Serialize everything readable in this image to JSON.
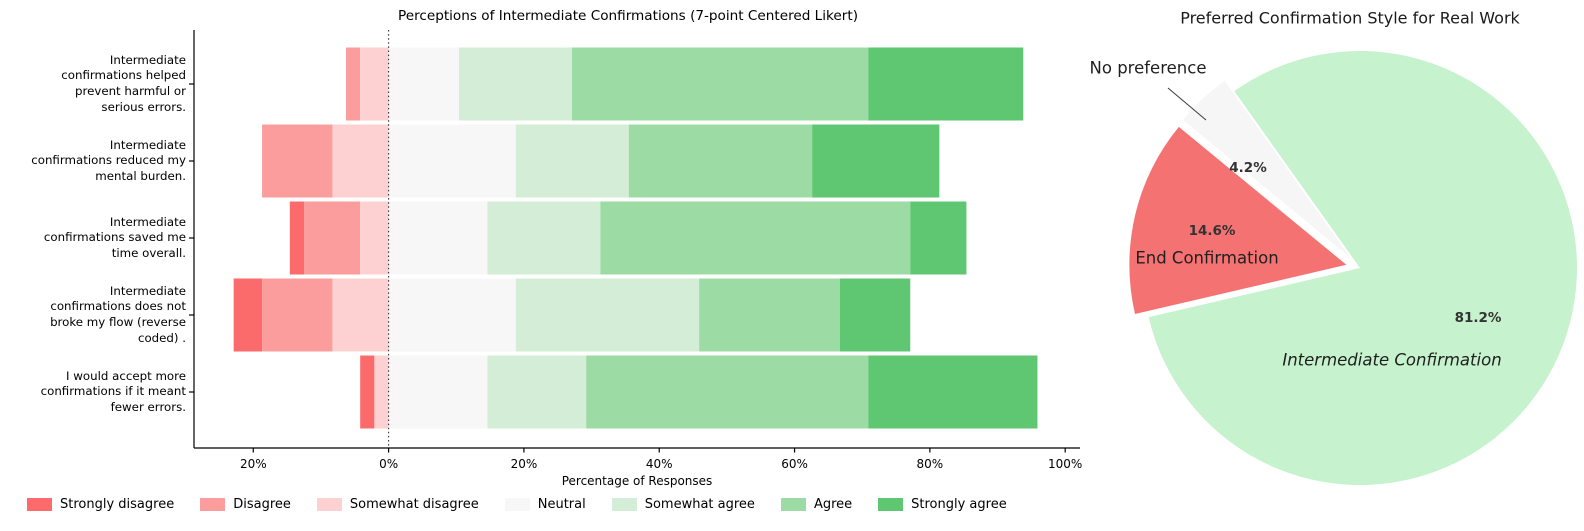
{
  "chart_data": [
    {
      "type": "bar",
      "variant": "diverging-stacked-likert",
      "title": "Perceptions of Intermediate Confirmations (7-point Centered Likert)",
      "xlabel": "Percentage of Responses",
      "x_tick_labels": [
        "20%",
        "0%",
        "20%",
        "40%",
        "60%",
        "80%",
        "100%"
      ],
      "x_tick_values": [
        -20,
        0,
        20,
        40,
        60,
        80,
        100
      ],
      "xlim": [
        -28.6,
        102.3
      ],
      "zero_line": 0,
      "grid": false,
      "legend_position": "bottom",
      "categories": [
        {
          "label": "Intermediate confirmations helped prevent harmful or serious errors.",
          "lines": [
            "Intermediate",
            "confirmations helped",
            "prevent harmful or",
            "serious errors."
          ]
        },
        {
          "label": "Intermediate confirmations reduced my mental burden.",
          "lines": [
            "Intermediate",
            "confirmations reduced my",
            "mental burden."
          ]
        },
        {
          "label": "Intermediate confirmations saved me time overall.",
          "lines": [
            "Intermediate",
            "confirmations saved me",
            "time overall."
          ]
        },
        {
          "label": "Intermediate confirmations does not broke my flow (reverse coded) .",
          "lines": [
            "Intermediate",
            "confirmations does not",
            "broke my flow (reverse",
            "coded) ."
          ]
        },
        {
          "label": "I would accept more confirmations if it meant fewer errors.",
          "lines": [
            "I would accept more",
            "confirmations if it meant",
            "fewer errors."
          ]
        }
      ],
      "series": [
        {
          "name": "Strongly disagree",
          "color": "#fb6b6b",
          "values": [
            0.0,
            0.0,
            2.1,
            4.2,
            2.1
          ]
        },
        {
          "name": "Disagree",
          "color": "#fb9d9d",
          "values": [
            2.1,
            10.4,
            8.3,
            10.4,
            0.0
          ]
        },
        {
          "name": "Somewhat disagree",
          "color": "#fdd1d1",
          "values": [
            4.2,
            8.3,
            4.2,
            8.3,
            2.1
          ]
        },
        {
          "name": "Neutral",
          "color": "#f7f7f7",
          "values": [
            10.4,
            18.8,
            14.6,
            18.8,
            14.6
          ]
        },
        {
          "name": "Somewhat agree",
          "color": "#d4edd6",
          "values": [
            16.7,
            16.7,
            16.7,
            27.1,
            14.6
          ]
        },
        {
          "name": "Agree",
          "color": "#9cdca4",
          "values": [
            43.8,
            27.1,
            45.8,
            20.8,
            41.7
          ]
        },
        {
          "name": "Strongly agree",
          "color": "#5fc671",
          "values": [
            22.9,
            18.8,
            8.3,
            10.4,
            25.0
          ]
        }
      ]
    },
    {
      "type": "pie",
      "title": "Preferred Confirmation Style for Real Work",
      "start_angle": 193.1,
      "direction": "counterclockwise",
      "slices": [
        {
          "label": "Intermediate Confirmation",
          "value": 81.2,
          "pct_label": "81.2%",
          "color": "#c6f2cd",
          "exploded": false
        },
        {
          "label": "No preference",
          "value": 4.2,
          "pct_label": "4.2%",
          "color": "#f6f6f6",
          "exploded": true
        },
        {
          "label": "End Confirmation",
          "value": 14.6,
          "pct_label": "14.6%",
          "color": "#f57272",
          "exploded": true
        }
      ]
    }
  ]
}
